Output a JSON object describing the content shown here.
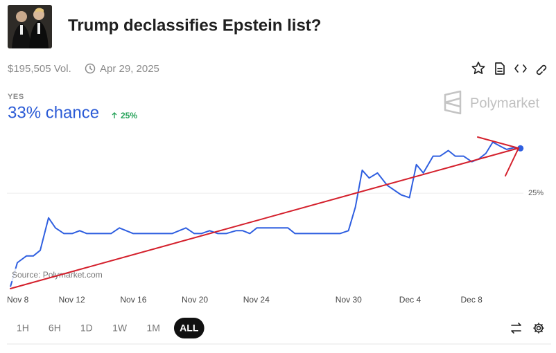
{
  "header": {
    "title": "Trump declassifies Epstein list?",
    "volume": "$195,505 Vol.",
    "date": "Apr 29, 2025"
  },
  "outcome": {
    "label": "YES",
    "chance": "33% chance",
    "change": "25%"
  },
  "brand": "Polymarket",
  "chart_data": {
    "type": "line",
    "source": "Source: Polymarket.com",
    "x": [
      0,
      0.45,
      1.04,
      1.49,
      1.94,
      2.48,
      2.93,
      3.48,
      4.02,
      4.51,
      4.97,
      6.55,
      7.09,
      7.99,
      10.52,
      11.42,
      11.96,
      12.42,
      12.96,
      13.5,
      14.04,
      14.67,
      15.12,
      15.58,
      16.03,
      18.06,
      18.51,
      21.44,
      21.99,
      22.44,
      22.89,
      23.34,
      23.88,
      24.51,
      25.42,
      25.96,
      26.41,
      26.86,
      27.5,
      27.95,
      28.49,
      28.94,
      29.48,
      30.02,
      30.47,
      30.93,
      31.38,
      31.92,
      32.28,
      32.73,
      33.18
    ],
    "series": [
      {
        "color": "#2f5fe0",
        "values": [
          8.3,
          12.6,
          13.8,
          13.8,
          14.8,
          20.6,
          18.8,
          17.8,
          17.8,
          18.3,
          17.8,
          17.8,
          18.8,
          17.8,
          17.8,
          18.8,
          17.8,
          17.8,
          18.3,
          17.8,
          17.8,
          18.3,
          18.3,
          17.8,
          18.8,
          18.8,
          17.8,
          17.8,
          18.3,
          22.5,
          29.1,
          27.7,
          28.6,
          26.4,
          24.7,
          24.2,
          30.1,
          28.6,
          31.6,
          31.6,
          32.6,
          31.6,
          31.6,
          30.6,
          31.1,
          32.1,
          34.1,
          33.3,
          32.8,
          33.1,
          33
        ]
      }
    ],
    "xlim": [
      0,
      33.6
    ],
    "ylim": [
      7.6,
      36
    ],
    "xticks": [
      {
        "value": 0,
        "label": "Nov 8"
      },
      {
        "value": 4,
        "label": "Nov 12"
      },
      {
        "value": 8,
        "label": "Nov 16"
      },
      {
        "value": 12,
        "label": "Nov 20"
      },
      {
        "value": 16,
        "label": "Nov 24"
      },
      {
        "value": 22,
        "label": "Nov 30"
      },
      {
        "value": 26,
        "label": "Dec 4"
      },
      {
        "value": 30,
        "label": "Dec 8"
      }
    ],
    "yticks": [
      {
        "value": 25,
        "label": "25%"
      }
    ],
    "grid": true
  },
  "range_buttons": [
    "1H",
    "6H",
    "1D",
    "1W",
    "1M",
    "ALL"
  ],
  "selected_range": "ALL"
}
